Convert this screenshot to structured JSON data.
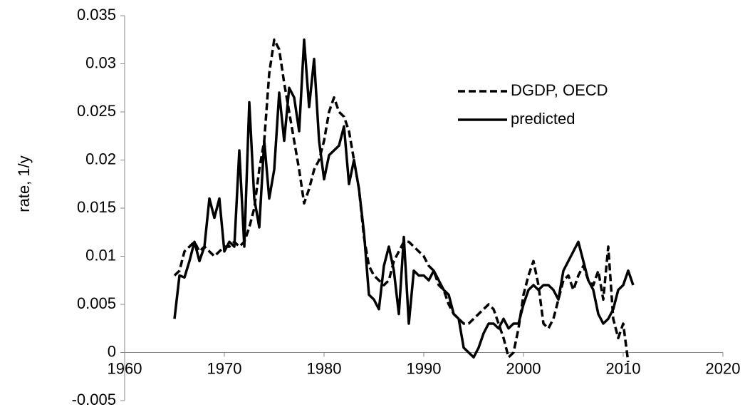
{
  "chart_data": {
    "type": "line",
    "y_label": "rate, 1/y",
    "x": [
      1965,
      1965.5,
      1966,
      1966.5,
      1967,
      1967.5,
      1968,
      1968.5,
      1969,
      1969.5,
      1970,
      1970.5,
      1971,
      1971.5,
      1972,
      1972.5,
      1973,
      1973.5,
      1974,
      1974.5,
      1975,
      1975.5,
      1976,
      1976.5,
      1977,
      1977.5,
      1978,
      1978.5,
      1979,
      1979.5,
      1980,
      1980.5,
      1981,
      1981.5,
      1982,
      1982.5,
      1983,
      1983.5,
      1984,
      1984.5,
      1985,
      1985.5,
      1986,
      1986.5,
      1987,
      1987.5,
      1988,
      1988.5,
      1989,
      1989.5,
      1990,
      1990.5,
      1991,
      1991.5,
      1992,
      1992.5,
      1993,
      1993.5,
      1994,
      1994.5,
      1995,
      1995.5,
      1996,
      1996.5,
      1997,
      1997.5,
      1998,
      1998.5,
      1999,
      1999.5,
      2000,
      2000.5,
      2001,
      2001.5,
      2002,
      2002.5,
      2003,
      2003.5,
      2004,
      2004.5,
      2005,
      2005.5,
      2006,
      2006.5,
      2007,
      2007.5,
      2008,
      2008.5,
      2009,
      2009.5,
      2010,
      2010.5,
      2011
    ],
    "series": [
      {
        "name": "DGDP, OECD",
        "color": "#000000",
        "dash": true,
        "values": [
          0.008,
          0.0085,
          0.0105,
          0.011,
          0.0115,
          0.0105,
          0.011,
          0.0105,
          0.01,
          0.0105,
          0.011,
          0.011,
          0.0115,
          0.011,
          0.0115,
          0.013,
          0.015,
          0.019,
          0.022,
          0.029,
          0.0325,
          0.0315,
          0.028,
          0.025,
          0.022,
          0.019,
          0.0155,
          0.017,
          0.019,
          0.02,
          0.022,
          0.025,
          0.0265,
          0.025,
          0.0245,
          0.023,
          0.02,
          0.017,
          0.012,
          0.009,
          0.008,
          0.0075,
          0.007,
          0.0075,
          0.0095,
          0.0105,
          0.0115,
          0.0115,
          0.011,
          0.0105,
          0.01,
          0.009,
          0.0085,
          0.007,
          0.0065,
          0.005,
          0.004,
          0.0035,
          0.003,
          0.003,
          0.0035,
          0.004,
          0.0045,
          0.005,
          0.0045,
          0.003,
          0.0015,
          -0.0005,
          0,
          0.0025,
          0.006,
          0.008,
          0.0095,
          0.007,
          0.003,
          0.0025,
          0.0035,
          0.0055,
          0.0075,
          0.008,
          0.0065,
          0.008,
          0.009,
          0.0075,
          0.007,
          0.0085,
          0.0055,
          0.011,
          0.0035,
          0.0015,
          0.003,
          -0.001,
          null
        ]
      },
      {
        "name": "predicted",
        "color": "#000000",
        "dash": false,
        "values": [
          0.0035,
          0.008,
          0.0078,
          0.0095,
          0.0115,
          0.0095,
          0.011,
          0.016,
          0.014,
          0.016,
          0.0105,
          0.0115,
          0.011,
          0.021,
          0.011,
          0.026,
          0.016,
          0.013,
          0.022,
          0.016,
          0.019,
          0.027,
          0.022,
          0.0275,
          0.0265,
          0.023,
          0.0325,
          0.0255,
          0.0305,
          0.022,
          0.018,
          0.0205,
          0.021,
          0.0215,
          0.0235,
          0.0175,
          0.02,
          0.017,
          0.0125,
          0.006,
          0.0055,
          0.0045,
          0.009,
          0.011,
          0.0085,
          0.004,
          0.012,
          0.003,
          0.0085,
          0.008,
          0.008,
          0.0075,
          0.0085,
          0.0075,
          0.0065,
          0.006,
          0.004,
          0.0035,
          0.0005,
          0,
          -0.0005,
          0.0005,
          0.002,
          0.003,
          0.003,
          0.0025,
          0.0035,
          0.0025,
          0.003,
          0.003,
          0.005,
          0.0065,
          0.007,
          0.0065,
          0.007,
          0.007,
          0.0065,
          0.0055,
          0.0085,
          0.0095,
          0.0105,
          0.0115,
          0.0095,
          0.0075,
          0.0065,
          0.004,
          0.003,
          0.0035,
          0.0045,
          0.0065,
          0.007,
          0.0085,
          0.007
        ]
      }
    ],
    "xlim": [
      1960,
      2020
    ],
    "xticks": [
      1960,
      1970,
      1980,
      1990,
      2000,
      2010,
      2020
    ],
    "ylim": [
      -0.005,
      0.035
    ],
    "yticks": [
      -0.005,
      0,
      0.005,
      0.01,
      0.015,
      0.02,
      0.025,
      0.03,
      0.035
    ],
    "grid": false
  }
}
